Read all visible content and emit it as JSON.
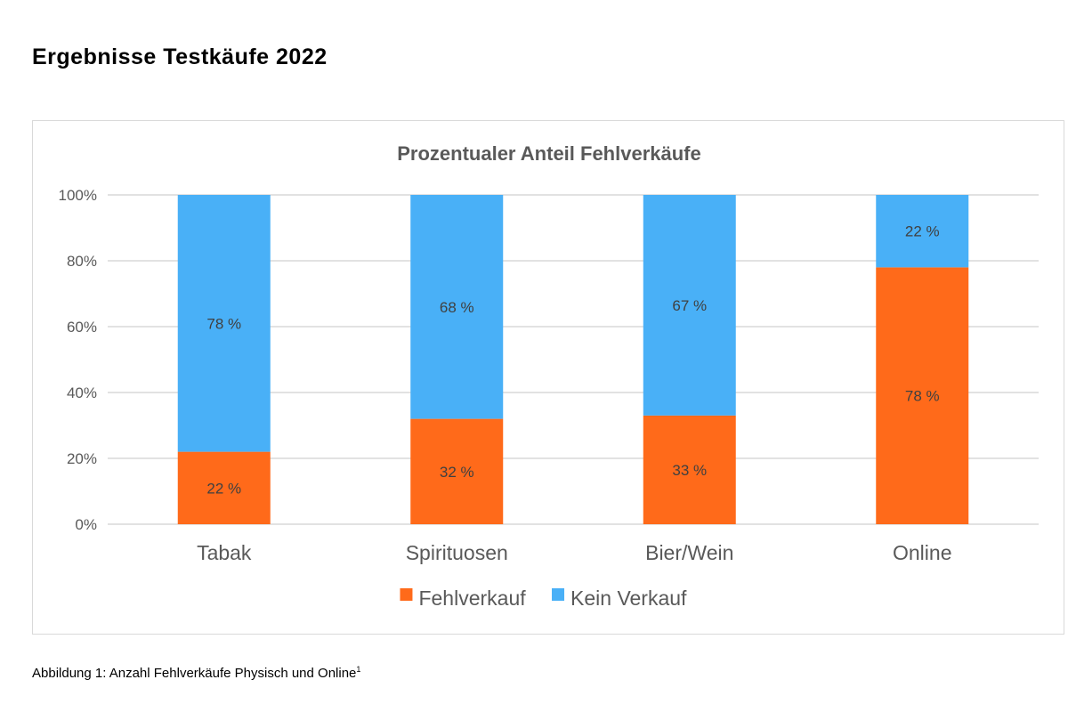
{
  "page": {
    "heading": "Ergebnisse Testkäufe 2022",
    "caption": "Abbildung 1: Anzahl Fehlverkäufe Physisch und Online",
    "caption_footnote": "1"
  },
  "colors": {
    "fehlverkauf": "#ff6a1a",
    "kein_verkauf": "#49b0f7",
    "grid": "#d9d9d9",
    "text": "#595959",
    "title_text": "#595959"
  },
  "chart_data": {
    "type": "bar",
    "stacked": true,
    "title": "Prozentualer Anteil Fehlverkäufe",
    "categories": [
      "Tabak",
      "Spirituosen",
      "Bier/Wein",
      "Online"
    ],
    "series": [
      {
        "name": "Fehlverkauf",
        "values": [
          22,
          32,
          33,
          78
        ],
        "labels": [
          "22 %",
          "32 %",
          "33 %",
          "78 %"
        ]
      },
      {
        "name": "Kein Verkauf",
        "values": [
          78,
          68,
          67,
          22
        ],
        "labels": [
          "78 %",
          "68 %",
          "67 %",
          "22 %"
        ]
      }
    ],
    "ylim": [
      0,
      100
    ],
    "yticks": [
      0,
      20,
      40,
      60,
      80,
      100
    ],
    "ytick_labels": [
      "0%",
      "20%",
      "40%",
      "60%",
      "80%",
      "100%"
    ],
    "grid": true,
    "legend_position": "bottom"
  }
}
